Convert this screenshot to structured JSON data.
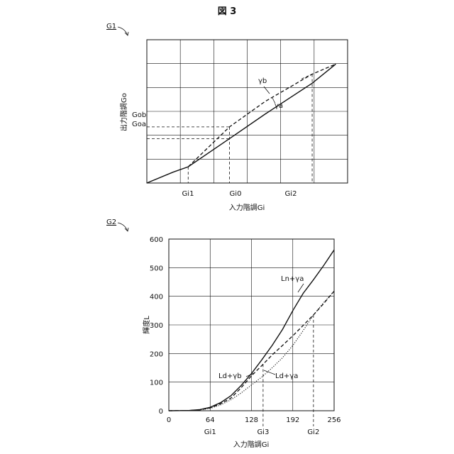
{
  "figure_title": "図 3",
  "chart_data": [
    {
      "type": "line",
      "panel_label": "G1",
      "xlabel": "入力階調Gi",
      "ylabel": "出力階調Go",
      "x_ticks": [
        "Gi1",
        "Gi0",
        "Gi2"
      ],
      "y_ticks": [
        "Gob",
        "Goa"
      ],
      "series": [
        {
          "name": "γa",
          "style": "solid",
          "points": [
            [
              0,
              0
            ],
            [
              2.2,
              0.45
            ],
            [
              3.5,
              0.68
            ],
            [
              7.0,
              1.86
            ],
            [
              10.0,
              2.88
            ],
            [
              14.0,
              4.18
            ],
            [
              16.0,
              4.98
            ]
          ]
        },
        {
          "name": "γb",
          "style": "dashed",
          "points": [
            [
              3.5,
              0.68
            ],
            [
              7.0,
              2.35
            ],
            [
              10.0,
              3.41
            ],
            [
              14.0,
              4.56
            ],
            [
              16.0,
              4.98
            ]
          ]
        }
      ],
      "annotations": [
        "γb",
        "γa"
      ]
    },
    {
      "type": "line",
      "panel_label": "G2",
      "xlabel": "入力階調Gi",
      "ylabel": "輝度L",
      "xlim": [
        0,
        256
      ],
      "ylim": [
        0,
        600
      ],
      "x_ticks": [
        0,
        64,
        128,
        192,
        256
      ],
      "y_ticks": [
        0,
        100,
        200,
        300,
        400,
        500,
        600
      ],
      "x_markers": [
        {
          "label": "Gi1",
          "x": 64
        },
        {
          "label": "Gi3",
          "x": 146
        },
        {
          "label": "Gi2",
          "x": 224
        }
      ],
      "grid": true,
      "series": [
        {
          "name": "Ln+γa",
          "style": "solid",
          "points": [
            [
              0,
              0
            ],
            [
              32,
              1
            ],
            [
              48,
              4
            ],
            [
              64,
              12
            ],
            [
              80,
              28
            ],
            [
              96,
              52
            ],
            [
              112,
              88
            ],
            [
              128,
              130
            ],
            [
              144,
              178
            ],
            [
              160,
              228
            ],
            [
              176,
              284
            ],
            [
              192,
              350
            ],
            [
              208,
              410
            ],
            [
              224,
              458
            ],
            [
              240,
              508
            ],
            [
              256,
              562
            ]
          ]
        },
        {
          "name": "Ld+γb",
          "style": "dashed",
          "points": [
            [
              0,
              0
            ],
            [
              32,
              1
            ],
            [
              48,
              3
            ],
            [
              64,
              10
            ],
            [
              80,
              24
            ],
            [
              96,
              44
            ],
            [
              112,
              80
            ],
            [
              128,
              122
            ],
            [
              144,
              158
            ],
            [
              160,
              195
            ],
            [
              176,
              228
            ],
            [
              192,
              262
            ],
            [
              208,
              298
            ],
            [
              224,
              335
            ],
            [
              240,
              375
            ],
            [
              256,
              418
            ]
          ]
        },
        {
          "name": "Ld+γa",
          "style": "dotted",
          "points": [
            [
              0,
              0
            ],
            [
              32,
              1
            ],
            [
              48,
              3
            ],
            [
              64,
              8
            ],
            [
              80,
              20
            ],
            [
              96,
              38
            ],
            [
              112,
              62
            ],
            [
              128,
              90
            ],
            [
              144,
              118
            ],
            [
              160,
              150
            ],
            [
              176,
              185
            ],
            [
              192,
              228
            ],
            [
              208,
              280
            ],
            [
              224,
              335
            ],
            [
              240,
              378
            ],
            [
              256,
              418
            ]
          ]
        }
      ],
      "annotations": [
        "Ln+γa",
        "Ld+γb",
        "Ld+γa"
      ]
    }
  ]
}
